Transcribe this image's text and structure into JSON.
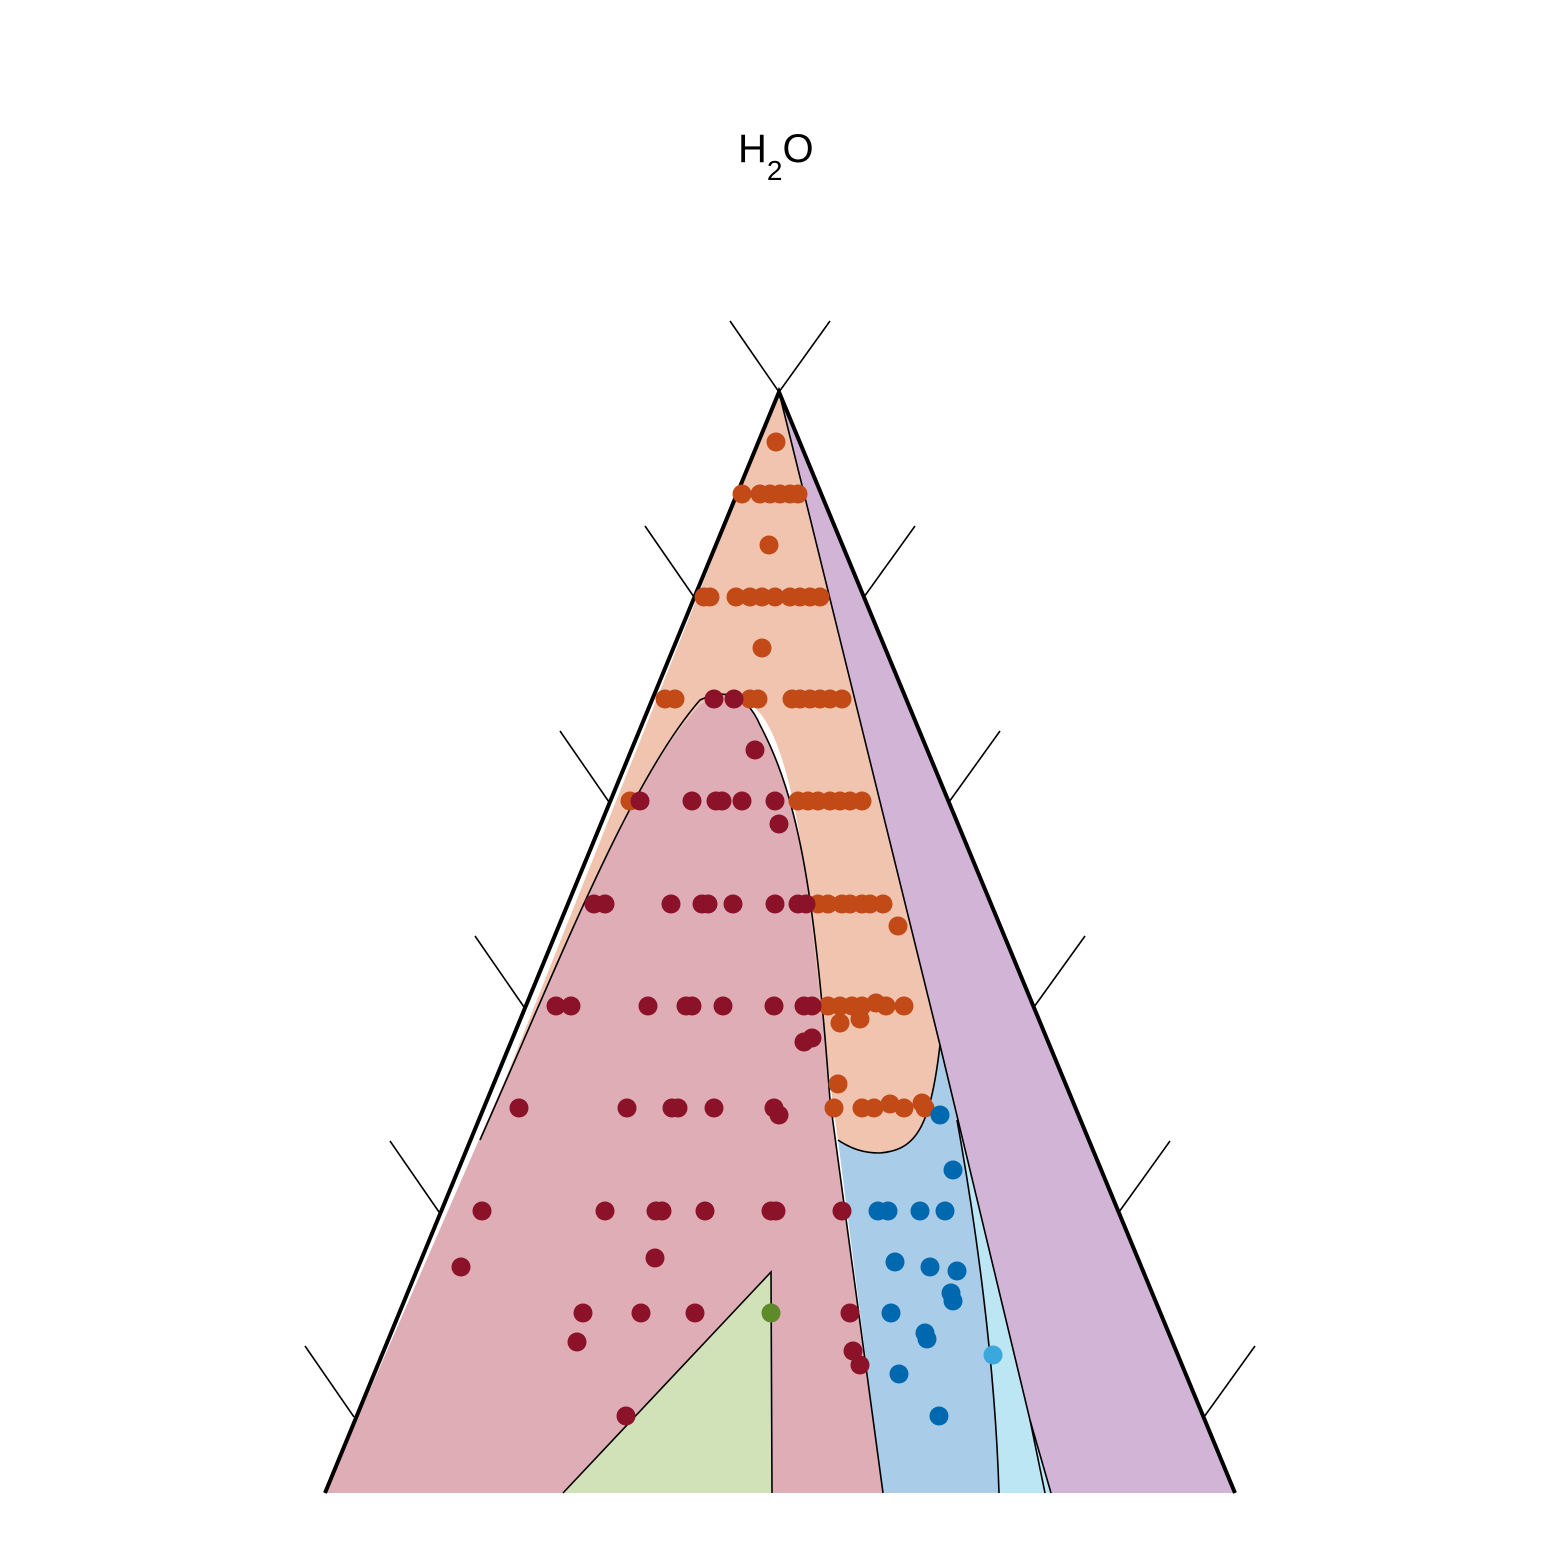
{
  "title": {
    "text": "H",
    "subscript": "2",
    "suffix": "O"
  },
  "colors": {
    "region_dark_red": "#dfadb5",
    "region_orange": "#f1c4b0",
    "region_purple": "#d2b5d6",
    "region_blue": "#a9cde8",
    "region_light_blue": "#bde6f4",
    "region_green": "#d1e2b8",
    "points_dark_red": "#8b1228",
    "points_orange": "#c14a17",
    "points_blue": "#0068ae",
    "points_light_blue": "#3aa8dc",
    "points_green": "#5e8a29"
  }
}
